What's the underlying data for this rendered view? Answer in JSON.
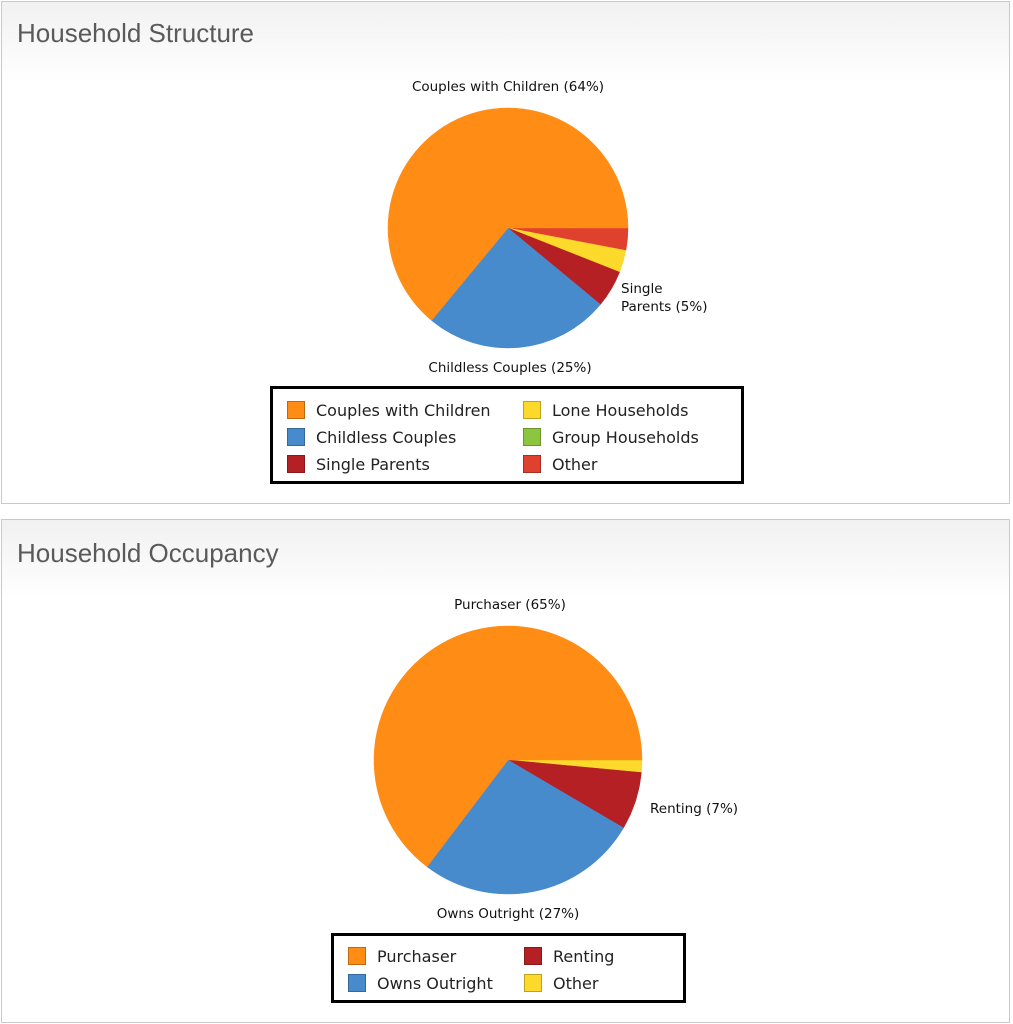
{
  "chart_data": [
    {
      "type": "pie",
      "title": "Household Structure",
      "slices": [
        {
          "label": "Couples with Children",
          "value": 64,
          "color": "#ff8c14"
        },
        {
          "label": "Childless Couples",
          "value": 25,
          "color": "#478bcd"
        },
        {
          "label": "Single Parents",
          "value": 5,
          "color": "#b42024"
        },
        {
          "label": "Lone Households",
          "value": 3,
          "color": "#fcd92a"
        },
        {
          "label": "Group Households",
          "value": 0,
          "color": "#8cc63f"
        },
        {
          "label": "Other",
          "value": 3,
          "color": "#e0402e"
        }
      ],
      "slice_labels": [
        {
          "text": "Couples with Children (64%)"
        },
        {
          "text": "Childless Couples (25%)"
        },
        {
          "lines": [
            "Single",
            "Parents (5%)"
          ]
        }
      ],
      "legend": [
        {
          "label": "Couples with Children",
          "color": "#ff8c14"
        },
        {
          "label": "Childless Couples",
          "color": "#478bcd"
        },
        {
          "label": "Single Parents",
          "color": "#b42024"
        },
        {
          "label": "Lone Households",
          "color": "#fcd92a"
        },
        {
          "label": "Group Households",
          "color": "#8cc63f"
        },
        {
          "label": "Other",
          "color": "#e0402e"
        }
      ],
      "legend_placement": "bottom"
    },
    {
      "type": "pie",
      "title": "Household Occupancy",
      "slices": [
        {
          "label": "Purchaser",
          "value": 65,
          "color": "#ff8c14"
        },
        {
          "label": "Owns Outright",
          "value": 27,
          "color": "#478bcd"
        },
        {
          "label": "Renting",
          "value": 7,
          "color": "#b42024"
        },
        {
          "label": "Other",
          "value": 1.5,
          "color": "#fcd92a"
        }
      ],
      "slice_labels": [
        {
          "text": "Purchaser (65%)"
        },
        {
          "text": "Owns Outright (27%)"
        },
        {
          "text": "Renting (7%)"
        }
      ],
      "legend": [
        {
          "label": "Purchaser",
          "color": "#ff8c14"
        },
        {
          "label": "Owns Outright",
          "color": "#478bcd"
        },
        {
          "label": "Renting",
          "color": "#b42024"
        },
        {
          "label": "Other",
          "color": "#fcd92a"
        }
      ],
      "legend_placement": "bottom"
    }
  ]
}
